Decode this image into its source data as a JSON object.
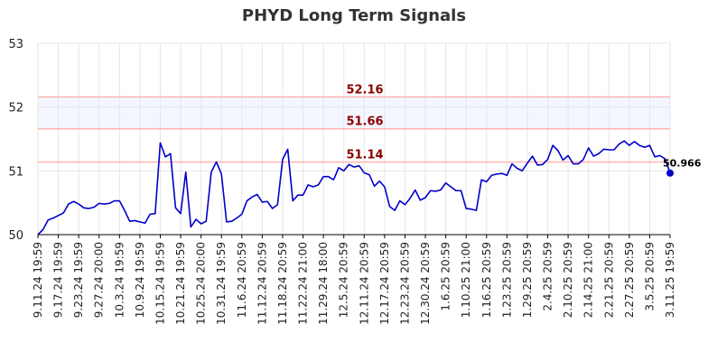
{
  "chart_data": {
    "type": "line",
    "title": "PHYD Long Term Signals",
    "xlabel": "",
    "ylabel": "",
    "ylim": [
      50,
      53
    ],
    "y_ticks": [
      50,
      51,
      52,
      53
    ],
    "grid": true,
    "x_tick_labels": [
      "9.11.24 19:59",
      "9.17.24 19:59",
      "9.23.24 19:59",
      "9.27.24 20:00",
      "10.3.24 19:59",
      "10.9.24 19:59",
      "10.15.24 19:59",
      "10.21.24 19:59",
      "10.25.24 20:00",
      "10.31.24 19:59",
      "11.6.24 20:59",
      "11.12.24 20:59",
      "11.18.24 20:59",
      "11.22.24 21:00",
      "11.29.24 18:00",
      "12.5.24 20:59",
      "12.11.24 20:59",
      "12.17.24 20:59",
      "12.23.24 20:59",
      "12.30.24 20:59",
      "1.6.25 20:59",
      "1.10.25 21:00",
      "1.16.25 20:59",
      "1.23.25 20:59",
      "1.29.25 20:59",
      "2.4.25 20:59",
      "2.10.25 20:59",
      "2.14.25 21:00",
      "2.21.25 20:59",
      "2.27.25 20:59",
      "3.5.25 20:59",
      "3.11.25 19:59"
    ],
    "reference_lines": [
      {
        "value": 52.16,
        "label": "52.16",
        "color": "#ffb3b3",
        "text_color": "#8b0000"
      },
      {
        "value": 51.66,
        "label": "51.66",
        "color": "#ffb3b3",
        "text_color": "#8b0000"
      },
      {
        "value": 51.14,
        "label": "51.14",
        "color": "#ffb3b3",
        "text_color": "#8b0000"
      }
    ],
    "band": {
      "from": 51.66,
      "to": 52.16,
      "color": "#f3f6ff"
    },
    "series": [
      {
        "color": "#0000cc",
        "values": [
          50.0,
          50.08,
          50.23,
          50.26,
          50.3,
          50.34,
          50.48,
          50.52,
          50.48,
          50.42,
          50.41,
          50.43,
          50.49,
          50.48,
          50.49,
          50.53,
          50.53,
          50.38,
          50.21,
          50.22,
          50.2,
          50.18,
          50.32,
          50.33,
          51.44,
          51.22,
          51.27,
          50.42,
          50.33,
          50.98,
          50.12,
          50.24,
          50.17,
          50.21,
          50.98,
          51.14,
          50.95,
          50.2,
          50.21,
          50.26,
          50.32,
          50.53,
          50.59,
          50.63,
          50.51,
          50.52,
          50.41,
          50.47,
          51.18,
          51.34,
          50.53,
          50.62,
          50.62,
          50.78,
          50.75,
          50.78,
          50.91,
          50.91,
          50.86,
          51.05,
          51.0,
          51.1,
          51.06,
          51.08,
          50.97,
          50.94,
          50.76,
          50.84,
          50.75,
          50.44,
          50.38,
          50.53,
          50.47,
          50.57,
          50.7,
          50.54,
          50.58,
          50.69,
          50.68,
          50.7,
          50.81,
          50.75,
          50.69,
          50.69,
          50.41,
          50.4,
          50.38,
          50.86,
          50.83,
          50.93,
          50.95,
          50.96,
          50.93,
          51.11,
          51.04,
          51.0,
          51.12,
          51.23,
          51.09,
          51.1,
          51.18,
          51.4,
          51.32,
          51.17,
          51.24,
          51.11,
          51.11,
          51.18,
          51.36,
          51.23,
          51.27,
          51.34,
          51.33,
          51.33,
          51.42,
          51.47,
          51.4,
          51.46,
          51.4,
          51.37,
          51.4,
          51.22,
          51.24,
          51.19,
          50.966
        ]
      }
    ],
    "last_value_label": "50.966"
  }
}
